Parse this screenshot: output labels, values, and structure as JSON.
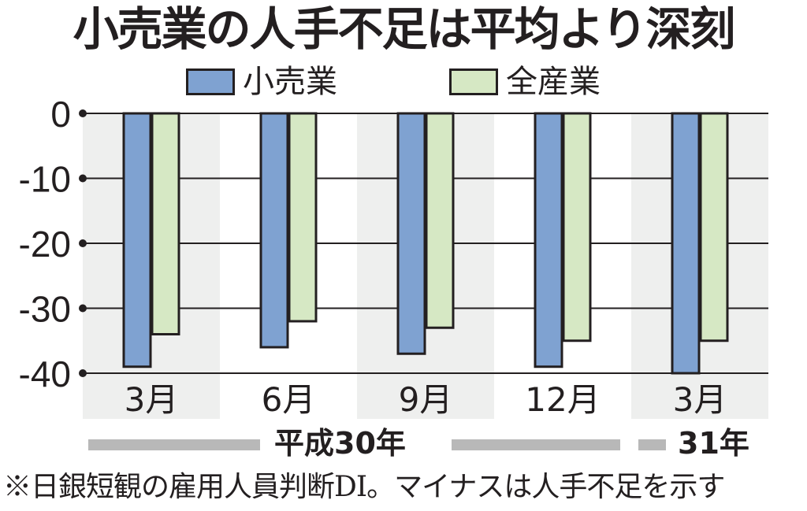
{
  "title": "小売業の人手不足は平均より深刻",
  "legend": [
    {
      "label": "小売業",
      "color": "#7fa2d1"
    },
    {
      "label": "全産業",
      "color": "#d6e8c4"
    }
  ],
  "colors": {
    "band": "#eeefee",
    "axis": "#231f20",
    "era_bar": "#b8b8b8"
  },
  "era": {
    "heisei30": "平成30年",
    "heisei31": "31年"
  },
  "note": "※日銀短観の雇用人員判断DI。マイナスは人手不足を示す",
  "chart_data": {
    "type": "bar",
    "title": "小売業の人手不足は平均より深刻",
    "categories": [
      "3月",
      "6月",
      "9月",
      "12月",
      "3月"
    ],
    "category_groups": [
      {
        "label": "平成30年",
        "categories": [
          "3月",
          "6月",
          "9月",
          "12月"
        ]
      },
      {
        "label": "31年",
        "categories": [
          "3月"
        ]
      }
    ],
    "series": [
      {
        "name": "小売業",
        "values": [
          -39,
          -36,
          -37,
          -39,
          -40
        ]
      },
      {
        "name": "全産業",
        "values": [
          -34,
          -32,
          -33,
          -35,
          -35
        ]
      }
    ],
    "yticks": [
      0,
      -10,
      -20,
      -30,
      -40
    ],
    "ylim": [
      -40,
      0
    ],
    "xlabel": "",
    "ylabel": "",
    "grid": true,
    "legend_position": "top",
    "footnote": "※日銀短観の雇用人員判断DI。マイナスは人手不足を示す"
  }
}
